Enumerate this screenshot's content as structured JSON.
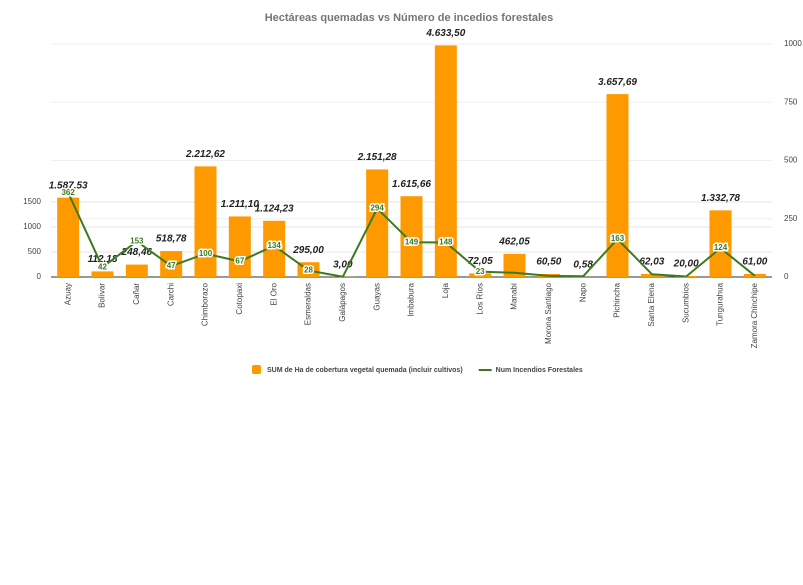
{
  "chart_data": {
    "type": "bar-line",
    "title": "Hectáreas quemadas vs Número de incedios forestales",
    "categories": [
      "Azuay",
      "Bolívar",
      "Cañar",
      "Carchi",
      "Chimborazo",
      "Cotopaxi",
      "El Oro",
      "Esmeraldas",
      "Galápagos",
      "Guayas",
      "Imbabura",
      "Loja",
      "Los Ríos",
      "Manabí",
      "Morona Santiago",
      "Napo",
      "Pichincha",
      "Santa Elena",
      "Sucumbíos",
      "Tungurahua",
      "Zamora Chinchipe"
    ],
    "series": [
      {
        "name": "SUM de Ha de cobertura vegetal quemada (incluir cultivos)",
        "color": "#ff9900",
        "kind": "bar",
        "values": [
          1587.53,
          112.18,
          248.46,
          518.78,
          2212.62,
          1211.1,
          1124.23,
          295.0,
          3.0,
          2151.28,
          1615.66,
          4633.5,
          72.05,
          462.05,
          60.5,
          0.58,
          3657.69,
          62.03,
          20.0,
          1332.78,
          61.0
        ],
        "value_labels": [
          "1.587,53",
          "112,18",
          "248,46",
          "518,78",
          "2.212,62",
          "1.211,10",
          "1.124,23",
          "295,00",
          "3,00",
          "2.151,28",
          "1.615,66",
          "4.633,50",
          "72,05",
          "462,05",
          "60,50",
          "0,58",
          "3.657,69",
          "62,03",
          "20,00",
          "1.332,78",
          "61,00"
        ]
      },
      {
        "name": "Num Incendios Forestales",
        "color": "#3d7a1e",
        "kind": "line",
        "axis": "y2",
        "values": [
          362,
          42,
          153,
          47,
          100,
          67,
          134,
          28,
          1,
          294,
          149,
          148,
          23,
          18,
          5,
          3,
          163,
          12,
          2,
          124,
          5
        ],
        "value_labels": [
          "362",
          "42",
          "153",
          "47",
          "100",
          "67",
          "134",
          "28",
          null,
          "294",
          "149",
          "148",
          "23",
          null,
          null,
          null,
          "163",
          null,
          null,
          "124",
          null
        ]
      }
    ],
    "ylim": [
      0,
      4660
    ],
    "yticks": [
      0,
      500,
      1000,
      1500
    ],
    "y2lim": [
      0,
      1000
    ],
    "y2ticks": [
      0,
      250,
      500,
      750,
      1000
    ],
    "grid": true
  }
}
